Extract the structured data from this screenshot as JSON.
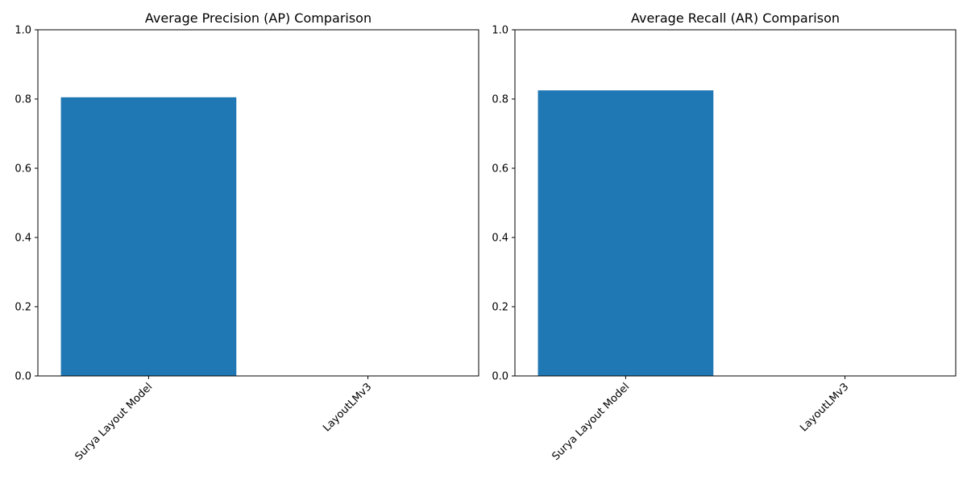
{
  "chart_data": [
    {
      "type": "bar",
      "title": "Average Precision (AP) Comparison",
      "xlabel": "",
      "ylabel": "",
      "categories": [
        "Surya Layout Model",
        "LayoutLMv3"
      ],
      "values": [
        0.805,
        0.0
      ],
      "ylim": [
        0,
        1
      ],
      "yticks": [
        "0.0",
        "0.2",
        "0.4",
        "0.6",
        "0.8",
        "1.0"
      ],
      "bar_color": "#1f77b4",
      "grid": false,
      "legend": "none"
    },
    {
      "type": "bar",
      "title": "Average Recall (AR) Comparison",
      "xlabel": "",
      "ylabel": "",
      "categories": [
        "Surya Layout Model",
        "LayoutLMv3"
      ],
      "values": [
        0.825,
        0.0
      ],
      "ylim": [
        0,
        1
      ],
      "yticks": [
        "0.0",
        "0.2",
        "0.4",
        "0.6",
        "0.8",
        "1.0"
      ],
      "bar_color": "#1f77b4",
      "grid": false,
      "legend": "none"
    }
  ]
}
